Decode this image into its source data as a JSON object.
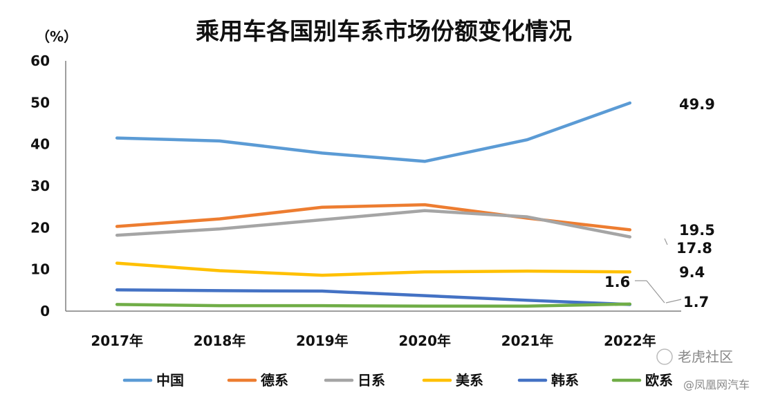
{
  "chart_data": {
    "type": "line",
    "title": "乘用车各国别车系市场份额变化情况",
    "ylabel": "（%）",
    "ylim": [
      0,
      60
    ],
    "yticks": [
      "0",
      "10",
      "20",
      "30",
      "40",
      "50",
      "60"
    ],
    "categories": [
      "2017年",
      "2018年",
      "2019年",
      "2020年",
      "2021年",
      "2022年"
    ],
    "legend": "bottom",
    "grid": false,
    "series": [
      {
        "name": "中国",
        "color": "#5B9BD5",
        "values": [
          41.5,
          40.8,
          37.9,
          35.9,
          41.1,
          49.9
        ]
      },
      {
        "name": "德系",
        "color": "#ED7D31",
        "values": [
          20.3,
          22.1,
          24.9,
          25.5,
          22.3,
          19.5
        ]
      },
      {
        "name": "日系",
        "color": "#A5A5A5",
        "values": [
          18.2,
          19.7,
          21.9,
          24.1,
          22.6,
          17.8
        ]
      },
      {
        "name": "美系",
        "color": "#FFC000",
        "values": [
          11.5,
          9.7,
          8.6,
          9.4,
          9.6,
          9.4
        ]
      },
      {
        "name": "韩系",
        "color": "#4472C4",
        "values": [
          5.1,
          4.9,
          4.8,
          3.7,
          2.6,
          1.6
        ]
      },
      {
        "name": "欧系",
        "color": "#70AD47",
        "values": [
          1.6,
          1.3,
          1.3,
          1.2,
          1.2,
          1.7
        ]
      }
    ],
    "annotations": [
      "49.9",
      "19.5",
      "17.8",
      "9.4",
      "1.6",
      "1.7"
    ]
  },
  "watermark": {
    "text": "老虎社区",
    "sub": "@凤凰网汽车"
  }
}
